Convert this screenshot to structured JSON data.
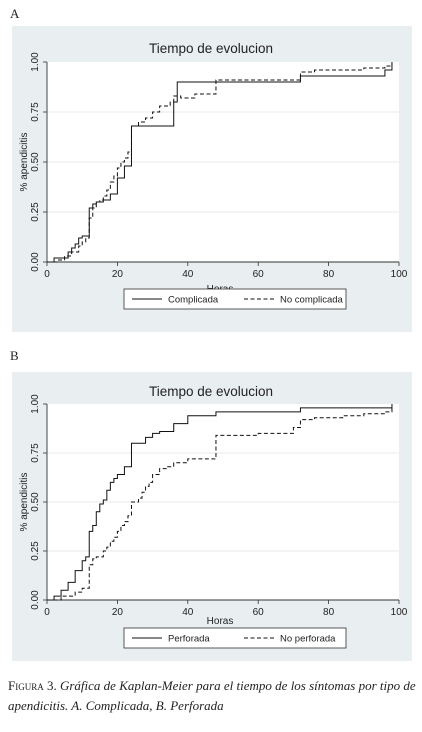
{
  "charts": [
    {
      "panel": "A",
      "chart_data": {
        "type": "line",
        "step": true,
        "title": "Tiempo de evolucion",
        "xlabel": "Horas",
        "ylabel": "% apendicitis",
        "xlim": [
          0,
          100
        ],
        "ylim": [
          0,
          1
        ],
        "xticks": [
          "0",
          "20",
          "40",
          "60",
          "80",
          "100"
        ],
        "yticks": [
          "0.00",
          "0.25",
          "0.50",
          "0.75",
          "1.00"
        ],
        "grid": true,
        "legend_position": "bottom",
        "series": [
          {
            "name": "Complicada",
            "dash": "solid",
            "x": [
              0,
              2,
              6,
              7,
              8,
              9,
              10,
              11,
              12,
              13,
              14,
              16,
              18,
              20,
              22,
              24,
              36,
              37,
              48,
              72,
              96,
              98
            ],
            "y": [
              0,
              0.02,
              0.05,
              0.07,
              0.09,
              0.12,
              0.13,
              0.13,
              0.27,
              0.29,
              0.3,
              0.31,
              0.34,
              0.42,
              0.48,
              0.68,
              0.8,
              0.9,
              0.9,
              0.93,
              0.96,
              1.0
            ]
          },
          {
            "name": "No complicada",
            "dash": "dashed",
            "x": [
              0,
              3,
              5,
              7,
              9,
              10,
              11,
              12,
              13,
              14,
              15,
              16,
              17,
              18,
              19,
              20,
              21,
              22,
              23,
              24,
              26,
              28,
              30,
              32,
              35,
              36,
              38,
              42,
              48,
              72,
              76,
              84,
              90,
              96,
              98
            ],
            "y": [
              0,
              0.01,
              0.03,
              0.05,
              0.08,
              0.1,
              0.12,
              0.22,
              0.27,
              0.3,
              0.31,
              0.33,
              0.36,
              0.4,
              0.43,
              0.47,
              0.5,
              0.52,
              0.55,
              0.68,
              0.7,
              0.72,
              0.75,
              0.78,
              0.8,
              0.83,
              0.82,
              0.84,
              0.91,
              0.95,
              0.96,
              0.96,
              0.97,
              0.98,
              0.99
            ]
          }
        ]
      }
    },
    {
      "panel": "B",
      "chart_data": {
        "type": "line",
        "step": true,
        "title": "Tiempo de evolucion",
        "xlabel": "Horas",
        "ylabel": "% apendicitis",
        "xlim": [
          0,
          100
        ],
        "ylim": [
          0,
          1
        ],
        "xticks": [
          "0",
          "20",
          "40",
          "60",
          "80",
          "100"
        ],
        "yticks": [
          "0.00",
          "0.25",
          "0.50",
          "0.75",
          "1.00"
        ],
        "grid": true,
        "legend_position": "bottom",
        "series": [
          {
            "name": "Perforada",
            "dash": "solid",
            "x": [
              0,
              2,
              4,
              6,
              8,
              10,
              11,
              12,
              13,
              14,
              15,
              16,
              17,
              18,
              19,
              20,
              22,
              24,
              28,
              30,
              32,
              36,
              40,
              48,
              72,
              98
            ],
            "y": [
              0,
              0.02,
              0.05,
              0.09,
              0.15,
              0.2,
              0.22,
              0.35,
              0.38,
              0.45,
              0.49,
              0.51,
              0.56,
              0.6,
              0.62,
              0.64,
              0.68,
              0.8,
              0.83,
              0.85,
              0.86,
              0.9,
              0.94,
              0.96,
              0.98,
              1.0
            ]
          },
          {
            "name": "No perforada",
            "dash": "dashed",
            "x": [
              0,
              4,
              8,
              10,
              12,
              13,
              14,
              16,
              17,
              18,
              19,
              20,
              21,
              22,
              23,
              24,
              26,
              27,
              28,
              29,
              30,
              32,
              34,
              36,
              40,
              48,
              60,
              70,
              72,
              76,
              84,
              90,
              96,
              98
            ],
            "y": [
              0,
              0.02,
              0.04,
              0.06,
              0.18,
              0.21,
              0.22,
              0.25,
              0.27,
              0.3,
              0.32,
              0.35,
              0.38,
              0.4,
              0.43,
              0.5,
              0.52,
              0.55,
              0.58,
              0.6,
              0.64,
              0.67,
              0.68,
              0.7,
              0.72,
              0.84,
              0.85,
              0.88,
              0.92,
              0.93,
              0.94,
              0.95,
              0.96,
              0.99
            ]
          }
        ]
      }
    }
  ],
  "caption": {
    "label": "Figura 3.",
    "text": "Gráfica de Kaplan-Meier para el tiempo de los síntomas por tipo de apendicitis. A. Complicada, B. Perforada"
  }
}
